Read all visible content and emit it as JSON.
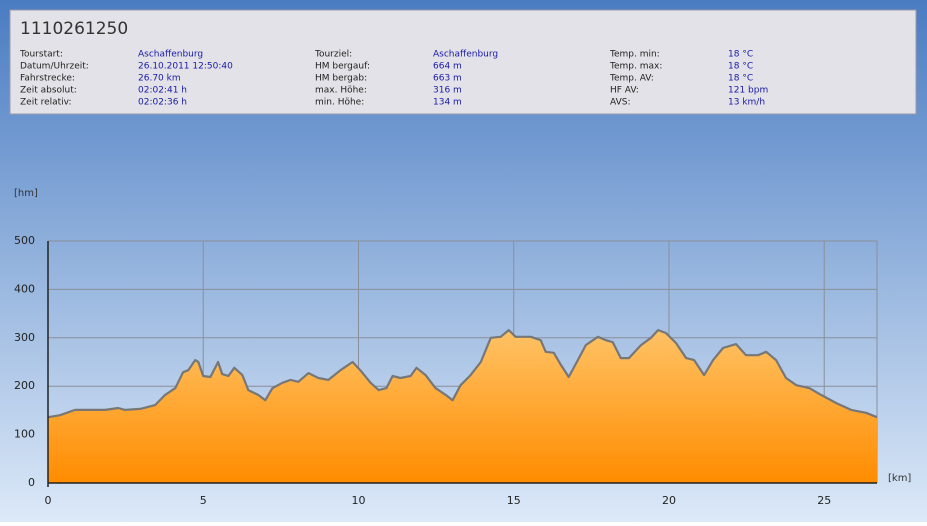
{
  "header": {
    "title": "1110261250",
    "columns": [
      [
        {
          "label": "Tourstart:",
          "value": "Aschaffenburg"
        },
        {
          "label": "Datum/Uhrzeit:",
          "value": "26.10.2011 12:50:40"
        },
        {
          "label": "Fahrstrecke:",
          "value": "26.70 km"
        },
        {
          "label": "Zeit absolut:",
          "value": "02:02:41 h"
        },
        {
          "label": "Zeit relativ:",
          "value": "02:02:36 h"
        }
      ],
      [
        {
          "label": "Tourziel:",
          "value": "Aschaffenburg"
        },
        {
          "label": "HM bergauf:",
          "value": "664 m"
        },
        {
          "label": "HM bergab:",
          "value": "663 m"
        },
        {
          "label": "max. Höhe:",
          "value": "316 m"
        },
        {
          "label": "min. Höhe:",
          "value": "134 m"
        }
      ],
      [
        {
          "label": "Temp. min:",
          "value": "18 °C"
        },
        {
          "label": "Temp. max:",
          "value": "18 °C"
        },
        {
          "label": "Temp. AV:",
          "value": "18 °C"
        },
        {
          "label": "HF AV:",
          "value": "121 bpm"
        },
        {
          "label": "AVS:",
          "value": "13 km/h"
        }
      ]
    ]
  },
  "chart_data": {
    "type": "area",
    "y_label": "[hm]",
    "x_label": "[km]",
    "x": [
      0,
      0.39,
      0.87,
      1.35,
      1.84,
      2.26,
      2.48,
      2.97,
      3.45,
      3.77,
      4.1,
      4.35,
      4.52,
      4.74,
      4.84,
      5,
      5.23,
      5.48,
      5.61,
      5.81,
      6.0,
      6.26,
      6.45,
      6.77,
      7.0,
      7.23,
      7.55,
      7.81,
      8.06,
      8.39,
      8.71,
      9.03,
      9.42,
      9.81,
      10.06,
      10.39,
      10.65,
      10.9,
      11.1,
      11.35,
      11.68,
      11.87,
      12.16,
      12.48,
      12.81,
      13.03,
      13.29,
      13.61,
      13.94,
      14.26,
      14.58,
      14.84,
      15.06,
      15.55,
      15.87,
      16.03,
      16.29,
      16.52,
      16.77,
      17.1,
      17.32,
      17.71,
      17.97,
      18.19,
      18.45,
      18.71,
      19.1,
      19.42,
      19.65,
      19.9,
      20.23,
      20.55,
      20.81,
      21.13,
      21.42,
      21.74,
      22.16,
      22.48,
      22.87,
      23.13,
      23.45,
      23.77,
      24.1,
      24.52,
      24.9,
      25.39,
      25.87,
      26.35,
      26.7
    ],
    "values": [
      136,
      140,
      151,
      151,
      151,
      155,
      151,
      153,
      161,
      182,
      196,
      229,
      233,
      254,
      250,
      221,
      219,
      250,
      225,
      221,
      238,
      223,
      192,
      182,
      171,
      196,
      207,
      213,
      209,
      227,
      217,
      213,
      233,
      250,
      233,
      207,
      192,
      196,
      221,
      217,
      221,
      238,
      223,
      196,
      182,
      171,
      202,
      223,
      250,
      300,
      302,
      316,
      302,
      302,
      295,
      271,
      269,
      244,
      219,
      258,
      285,
      302,
      295,
      291,
      258,
      258,
      285,
      300,
      316,
      310,
      289,
      258,
      254,
      223,
      254,
      279,
      287,
      264,
      264,
      271,
      254,
      217,
      202,
      196,
      182,
      165,
      151,
      145,
      136
    ],
    "color": "#777777",
    "xlim": [
      0,
      26.7
    ],
    "ylim": [
      0,
      500
    ],
    "xticks": [
      0,
      5,
      10,
      15,
      20,
      25
    ],
    "yticks": [
      0,
      100,
      200,
      300,
      400,
      500
    ],
    "grid": true
  }
}
